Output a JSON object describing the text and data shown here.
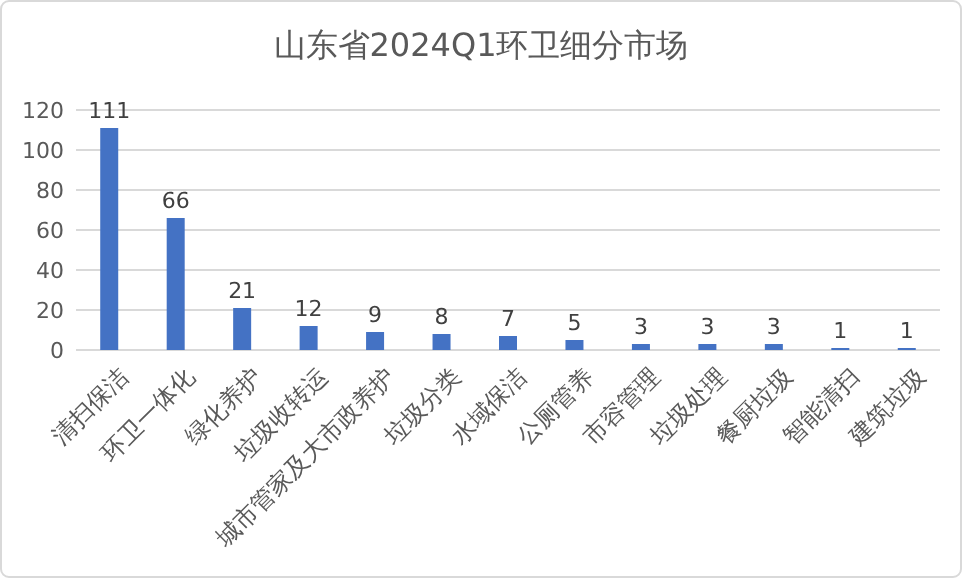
{
  "chart_data": {
    "type": "bar",
    "title": "山东省2024Q1环卫细分市场",
    "categories": [
      "清扫保洁",
      "环卫一体化",
      "绿化养护",
      "垃圾收转运",
      "城市管家及大市政养护",
      "垃圾分类",
      "水域保洁",
      "公厕管养",
      "市容管理",
      "垃圾处理",
      "餐厨垃圾",
      "智能清扫",
      "建筑垃圾"
    ],
    "values": [
      111,
      66,
      21,
      12,
      9,
      8,
      7,
      5,
      3,
      3,
      3,
      1,
      1
    ],
    "color": "#4472c4",
    "ylim": [
      0,
      120
    ],
    "yticks": [
      0,
      20,
      40,
      60,
      80,
      100,
      120
    ],
    "grid": "y",
    "data_labels": true
  }
}
